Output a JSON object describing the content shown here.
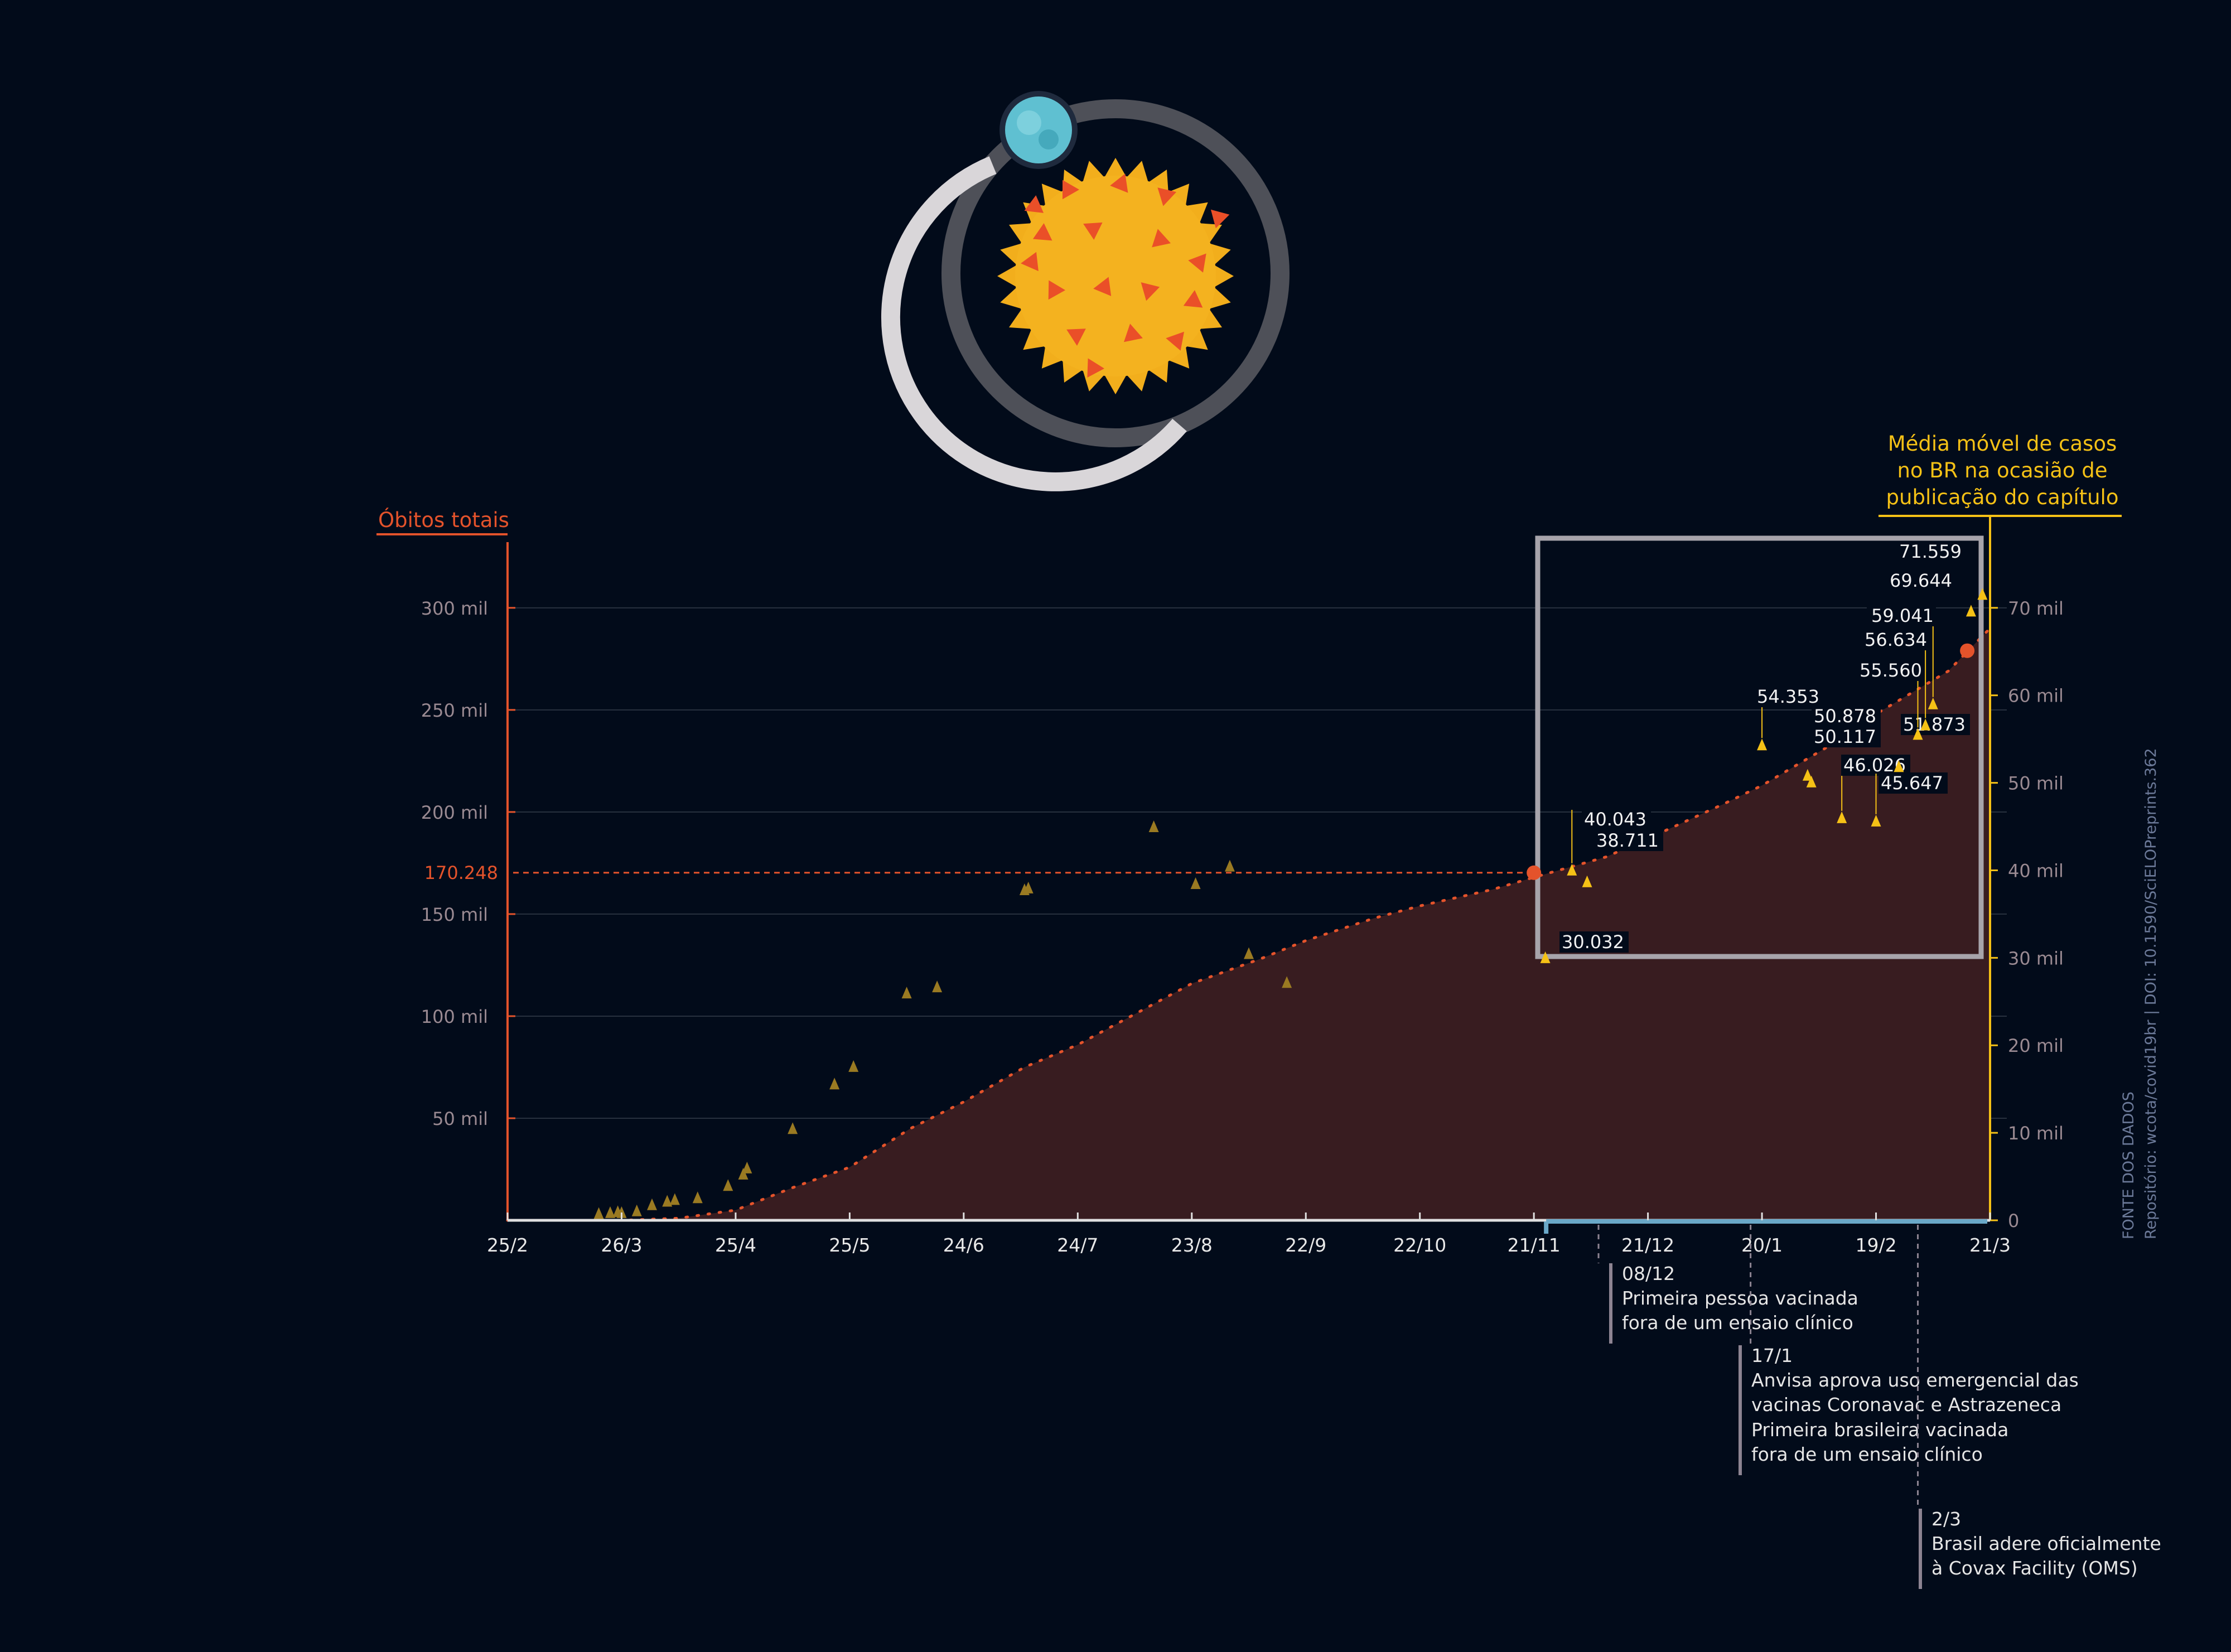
{
  "colors": {
    "background": "#020b1a",
    "deaths": "#e4532b",
    "deaths_fill": "#381c20",
    "cases": "#f5c116",
    "cases_dim": "#9a7a22",
    "axis_text": "#9a8a92",
    "tick_label": "#e8e8e8",
    "box": "#a7a4ab",
    "event_line": "#8d8492",
    "highlight_axis": "#6aa8c8",
    "source_text": "#6c7a99"
  },
  "chart_data": {
    "type": "area",
    "left_axis": {
      "title": "Óbitos totais",
      "ylim": [
        0,
        330000
      ],
      "ticks": [
        50000,
        100000,
        150000,
        200000,
        250000,
        300000
      ],
      "tick_labels": [
        "50 mil",
        "100 mil",
        "150 mil",
        "200 mil",
        "250 mil",
        "300 mil"
      ]
    },
    "right_axis": {
      "title_lines": [
        "Média móvel de casos",
        "no BR na ocasião de",
        "publicação do capítulo"
      ],
      "ylim": [
        0,
        77000
      ],
      "ticks": [
        0,
        10000,
        20000,
        30000,
        40000,
        50000,
        60000,
        70000
      ],
      "tick_labels": [
        "0",
        "10 mil",
        "20 mil",
        "30 mil",
        "40 mil",
        "50 mil",
        "60 mil",
        "70 mil"
      ]
    },
    "x_axis": {
      "range": [
        "2020-02-25",
        "2021-03-21"
      ],
      "tick_dates": [
        "2020-02-25",
        "2020-03-26",
        "2020-04-25",
        "2020-05-25",
        "2020-06-24",
        "2020-07-24",
        "2020-08-23",
        "2020-09-22",
        "2020-10-22",
        "2020-11-21",
        "2020-12-21",
        "2021-01-20",
        "2021-02-19",
        "2021-03-21"
      ],
      "tick_labels": [
        "25/2",
        "26/3",
        "25/4",
        "25/5",
        "24/6",
        "24/7",
        "23/8",
        "22/9",
        "22/10",
        "21/11",
        "21/12",
        "20/1",
        "19/2",
        "21/3"
      ],
      "highlight_range": [
        "2020-11-21",
        "2021-03-21"
      ]
    },
    "deaths_series": {
      "name": "Óbitos totais",
      "x": [
        "2020-02-25",
        "2020-03-10",
        "2020-03-26",
        "2020-04-10",
        "2020-04-25",
        "2020-05-10",
        "2020-05-25",
        "2020-06-10",
        "2020-06-24",
        "2020-07-10",
        "2020-07-24",
        "2020-08-10",
        "2020-08-23",
        "2020-09-10",
        "2020-09-22",
        "2020-10-10",
        "2020-10-22",
        "2020-11-10",
        "2020-11-21",
        "2020-12-10",
        "2020-12-21",
        "2021-01-10",
        "2021-01-20",
        "2021-02-10",
        "2021-02-19",
        "2021-03-10",
        "2021-03-21"
      ],
      "y": [
        0,
        0,
        0,
        1000,
        5000,
        16000,
        26000,
        45000,
        58000,
        75000,
        86000,
        103000,
        116000,
        128000,
        137000,
        148000,
        154000,
        162000,
        168000,
        178000,
        187000,
        204000,
        213000,
        236000,
        248000,
        269000,
        290000
      ]
    },
    "deaths_markers": [
      {
        "x": "2020-11-21",
        "y": 170248,
        "label": "170.248"
      },
      {
        "x": "2021-03-15",
        "y": 279000
      }
    ],
    "cases_points": [
      {
        "x": "2020-03-20",
        "y": 800
      },
      {
        "x": "2020-03-23",
        "y": 900
      },
      {
        "x": "2020-03-25",
        "y": 1000
      },
      {
        "x": "2020-03-26",
        "y": 900
      },
      {
        "x": "2020-03-30",
        "y": 1100
      },
      {
        "x": "2020-04-03",
        "y": 1800
      },
      {
        "x": "2020-04-07",
        "y": 2200
      },
      {
        "x": "2020-04-09",
        "y": 2400
      },
      {
        "x": "2020-04-15",
        "y": 2600
      },
      {
        "x": "2020-04-23",
        "y": 4000
      },
      {
        "x": "2020-04-27",
        "y": 5300
      },
      {
        "x": "2020-04-28",
        "y": 6000
      },
      {
        "x": "2020-05-10",
        "y": 10500
      },
      {
        "x": "2020-05-21",
        "y": 15600
      },
      {
        "x": "2020-05-26",
        "y": 17600
      },
      {
        "x": "2020-06-09",
        "y": 26000
      },
      {
        "x": "2020-06-17",
        "y": 26700
      },
      {
        "x": "2020-07-10",
        "y": 37800
      },
      {
        "x": "2020-07-11",
        "y": 38000
      },
      {
        "x": "2020-08-13",
        "y": 45000
      },
      {
        "x": "2020-08-24",
        "y": 38500
      },
      {
        "x": "2020-09-02",
        "y": 40500
      },
      {
        "x": "2020-09-07",
        "y": 30500
      },
      {
        "x": "2020-09-17",
        "y": 27200
      },
      {
        "x": "2020-11-24",
        "y": 30032,
        "label": "30.032"
      },
      {
        "x": "2020-12-01",
        "y": 40043,
        "label": "40.043"
      },
      {
        "x": "2020-12-05",
        "y": 38711,
        "label": "38.711"
      },
      {
        "x": "2021-01-20",
        "y": 54353,
        "label": "54.353"
      },
      {
        "x": "2021-02-01",
        "y": 50878,
        "label": "50.878"
      },
      {
        "x": "2021-02-02",
        "y": 50117,
        "label": "50.117"
      },
      {
        "x": "2021-02-10",
        "y": 46026,
        "label": "46.026"
      },
      {
        "x": "2021-02-19",
        "y": 45647,
        "label": "45.647"
      },
      {
        "x": "2021-02-25",
        "y": 51873,
        "label": "51.873"
      },
      {
        "x": "2021-03-02",
        "y": 55560,
        "label": "55.560"
      },
      {
        "x": "2021-03-04",
        "y": 56634,
        "label": "56.634"
      },
      {
        "x": "2021-03-06",
        "y": 59041,
        "label": "59.041"
      },
      {
        "x": "2021-03-16",
        "y": 69644,
        "label": "69.644"
      },
      {
        "x": "2021-03-19",
        "y": 71559,
        "label": "71.559"
      }
    ],
    "events": [
      {
        "date": "2020-12-08",
        "title": "08/12",
        "lines": [
          "Primeira pessoa vacinada",
          "fora de um ensaio clínico"
        ]
      },
      {
        "date": "2021-01-17",
        "title": "17/1",
        "lines": [
          "Anvisa aprova uso emergencial das",
          "vacinas Coronavac e Astrazeneca"
        ]
      },
      {
        "date": "2021-01-17",
        "title": "",
        "lines": [
          "Primeira brasileira vacinada",
          "fora de um ensaio clínico"
        ]
      },
      {
        "date": "2021-03-02",
        "title": "2/3",
        "lines": [
          "Brasil adere oficialmente",
          "à Covax Facility (OMS)"
        ]
      }
    ],
    "source": {
      "heading": "FONTE DOS DADOS",
      "text": "Repositório: wcota/covid19br | DOI: 10.1590/SciELOPreprints.362"
    }
  }
}
